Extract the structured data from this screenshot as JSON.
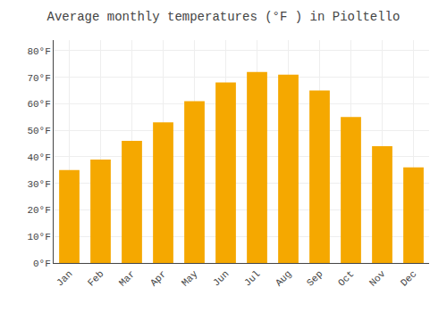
{
  "chart_data": {
    "type": "bar",
    "title": "Average monthly temperatures (°F ) in Pioltello",
    "categories": [
      "Jan",
      "Feb",
      "Mar",
      "Apr",
      "May",
      "Jun",
      "Jul",
      "Aug",
      "Sep",
      "Oct",
      "Nov",
      "Dec"
    ],
    "values": [
      35,
      39,
      46,
      53,
      61,
      68,
      72,
      71,
      65,
      55,
      44,
      36
    ],
    "color": "#F5A800",
    "ylim": [
      0,
      84
    ],
    "yticks": [
      {
        "value": 0,
        "label": "0°F"
      },
      {
        "value": 10,
        "label": "10°F"
      },
      {
        "value": 20,
        "label": "20°F"
      },
      {
        "value": 30,
        "label": "30°F"
      },
      {
        "value": 40,
        "label": "40°F"
      },
      {
        "value": 50,
        "label": "50°F"
      },
      {
        "value": 60,
        "label": "60°F"
      },
      {
        "value": 70,
        "label": "70°F"
      },
      {
        "value": 80,
        "label": "80°F"
      }
    ],
    "grid": true
  }
}
